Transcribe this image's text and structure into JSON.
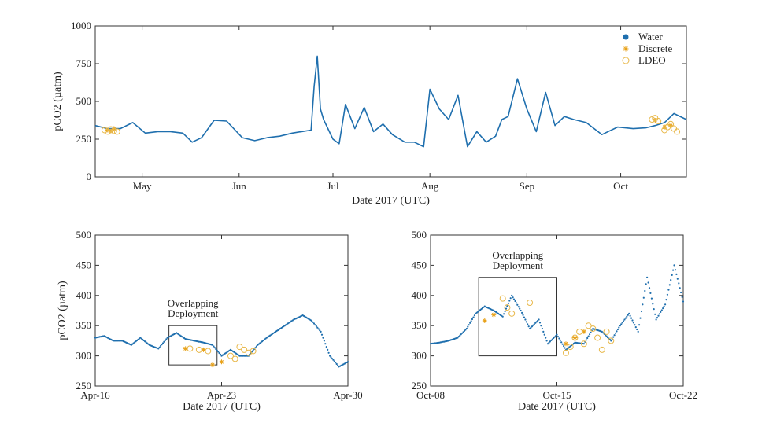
{
  "colors": {
    "water": "#1f6fae",
    "discrete": "#e8a21a",
    "ldeo": "#e8b84a",
    "axis": "#333333"
  },
  "legend": {
    "placement": "top-right",
    "items": [
      "Water",
      "Discrete",
      "LDEO"
    ]
  },
  "chart_data": [
    {
      "type": "line",
      "xlabel": "Date 2017 (UTC)",
      "ylabel": "pCO2 (µatm)",
      "ylim": [
        0,
        1000
      ],
      "yticks": [
        0,
        250,
        500,
        750,
        1000
      ],
      "xlim": [
        "2017-04-16",
        "2017-10-22"
      ],
      "xticks": [
        {
          "date": "2017-05-01",
          "label": "May"
        },
        {
          "date": "2017-06-01",
          "label": "Jun"
        },
        {
          "date": "2017-07-01",
          "label": "Jul"
        },
        {
          "date": "2017-08-01",
          "label": "Aug"
        },
        {
          "date": "2017-09-01",
          "label": "Sep"
        },
        {
          "date": "2017-10-01",
          "label": "Oct"
        }
      ],
      "series": [
        {
          "name": "Water",
          "style": "line",
          "x": [
            "2017-04-16",
            "2017-04-20",
            "2017-04-24",
            "2017-04-28",
            "2017-05-02",
            "2017-05-06",
            "2017-05-10",
            "2017-05-14",
            "2017-05-17",
            "2017-05-20",
            "2017-05-24",
            "2017-05-28",
            "2017-06-02",
            "2017-06-06",
            "2017-06-10",
            "2017-06-14",
            "2017-06-18",
            "2017-06-21",
            "2017-06-24",
            "2017-06-25",
            "2017-06-26",
            "2017-06-27",
            "2017-06-28",
            "2017-07-01",
            "2017-07-03",
            "2017-07-05",
            "2017-07-08",
            "2017-07-11",
            "2017-07-14",
            "2017-07-17",
            "2017-07-20",
            "2017-07-24",
            "2017-07-27",
            "2017-07-30",
            "2017-08-01",
            "2017-08-04",
            "2017-08-07",
            "2017-08-10",
            "2017-08-13",
            "2017-08-16",
            "2017-08-19",
            "2017-08-22",
            "2017-08-24",
            "2017-08-26",
            "2017-08-29",
            "2017-09-01",
            "2017-09-04",
            "2017-09-07",
            "2017-09-10",
            "2017-09-13",
            "2017-09-16",
            "2017-09-20",
            "2017-09-25",
            "2017-09-30",
            "2017-10-05",
            "2017-10-09",
            "2017-10-12",
            "2017-10-15",
            "2017-10-18",
            "2017-10-22"
          ],
          "y": [
            340,
            320,
            320,
            360,
            290,
            300,
            300,
            290,
            230,
            260,
            375,
            370,
            260,
            240,
            260,
            270,
            290,
            300,
            310,
            600,
            800,
            450,
            380,
            250,
            220,
            480,
            320,
            460,
            300,
            350,
            280,
            230,
            230,
            200,
            580,
            450,
            380,
            540,
            200,
            300,
            230,
            270,
            380,
            400,
            650,
            450,
            300,
            560,
            340,
            400,
            380,
            360,
            280,
            330,
            320,
            325,
            340,
            360,
            420,
            380
          ]
        },
        {
          "name": "Discrete",
          "style": "star",
          "x": [
            "2017-04-20",
            "2017-04-21",
            "2017-04-22",
            "2017-10-12",
            "2017-10-15",
            "2017-10-17"
          ],
          "y": [
            310,
            305,
            320,
            375,
            330,
            340
          ]
        },
        {
          "name": "LDEO",
          "style": "circle",
          "x": [
            "2017-04-19",
            "2017-04-20",
            "2017-04-21",
            "2017-04-22",
            "2017-04-23",
            "2017-10-11",
            "2017-10-12",
            "2017-10-13",
            "2017-10-15",
            "2017-10-16",
            "2017-10-17",
            "2017-10-18",
            "2017-10-19"
          ],
          "y": [
            310,
            300,
            315,
            305,
            300,
            380,
            390,
            370,
            310,
            330,
            350,
            320,
            300
          ]
        }
      ]
    },
    {
      "type": "line",
      "xlabel": "Date 2017 (UTC)",
      "ylabel": "pCO2 (µatm)",
      "ylim": [
        250,
        500
      ],
      "yticks": [
        250,
        300,
        350,
        400,
        450,
        500
      ],
      "xlim": [
        "2017-04-16",
        "2017-04-30"
      ],
      "xticks": [
        {
          "date": "2017-04-16",
          "label": "Apr-16"
        },
        {
          "date": "2017-04-23",
          "label": "Apr-23"
        },
        {
          "date": "2017-04-30",
          "label": "Apr-30"
        }
      ],
      "annotation": {
        "lines": [
          "Overlapping",
          "Deployment"
        ],
        "x0": "2017-04-20T02:00",
        "x1": "2017-04-22T18:00",
        "y0": 285,
        "y1": 350
      },
      "series": [
        {
          "name": "Water",
          "style": "dots",
          "x": [
            "2017-04-16T00:00",
            "2017-04-16T12:00",
            "2017-04-17T00:00",
            "2017-04-17T12:00",
            "2017-04-18T00:00",
            "2017-04-18T12:00",
            "2017-04-19T00:00",
            "2017-04-19T12:00",
            "2017-04-20T00:00",
            "2017-04-20T12:00",
            "2017-04-21T00:00",
            "2017-04-21T12:00",
            "2017-04-22T00:00",
            "2017-04-22T12:00",
            "2017-04-23T00:00",
            "2017-04-23T12:00",
            "2017-04-24T00:00",
            "2017-04-24T12:00",
            "2017-04-25T00:00",
            "2017-04-25T12:00",
            "2017-04-26T00:00",
            "2017-04-26T12:00",
            "2017-04-27T00:00",
            "2017-04-27T12:00",
            "2017-04-28T00:00",
            "2017-04-28T12:00",
            "2017-04-29T00:00",
            "2017-04-29T12:00",
            "2017-04-30T00:00"
          ],
          "y": [
            330,
            333,
            325,
            325,
            318,
            330,
            318,
            312,
            330,
            338,
            328,
            325,
            322,
            318,
            300,
            310,
            300,
            300,
            318,
            330,
            340,
            350,
            360,
            367,
            358,
            340,
            300,
            282,
            290
          ]
        },
        {
          "name": "Discrete",
          "style": "star",
          "x": [
            "2017-04-21T00:00",
            "2017-04-22T00:00",
            "2017-04-22T12:00",
            "2017-04-23T00:00"
          ],
          "y": [
            312,
            310,
            285,
            290
          ]
        },
        {
          "name": "LDEO",
          "style": "circle",
          "x": [
            "2017-04-21T06:00",
            "2017-04-21T18:00",
            "2017-04-22T06:00",
            "2017-04-23T12:00",
            "2017-04-23T18:00",
            "2017-04-24T00:00",
            "2017-04-24T06:00",
            "2017-04-24T12:00",
            "2017-04-24T18:00"
          ],
          "y": [
            312,
            310,
            308,
            300,
            295,
            315,
            310,
            305,
            308
          ]
        }
      ]
    },
    {
      "type": "line",
      "xlabel": "Date 2017 (UTC)",
      "ylabel": "",
      "ylim": [
        250,
        500
      ],
      "yticks": [
        250,
        300,
        350,
        400,
        450,
        500
      ],
      "xlim": [
        "2017-10-08",
        "2017-10-22"
      ],
      "xticks": [
        {
          "date": "2017-10-08",
          "label": "Oct-08"
        },
        {
          "date": "2017-10-15",
          "label": "Oct-15"
        },
        {
          "date": "2017-10-22",
          "label": "Oct-22"
        }
      ],
      "annotation": {
        "lines": [
          "Overlapping",
          "Deployment"
        ],
        "x0": "2017-10-10T16:00",
        "x1": "2017-10-15T00:00",
        "y0": 300,
        "y1": 430
      },
      "series": [
        {
          "name": "Water",
          "style": "dots",
          "x": [
            "2017-10-08T00:00",
            "2017-10-08T12:00",
            "2017-10-09T00:00",
            "2017-10-09T12:00",
            "2017-10-10T00:00",
            "2017-10-10T12:00",
            "2017-10-11T00:00",
            "2017-10-11T12:00",
            "2017-10-12T00:00",
            "2017-10-12T12:00",
            "2017-10-13T00:00",
            "2017-10-13T12:00",
            "2017-10-14T00:00",
            "2017-10-14T12:00",
            "2017-10-15T00:00",
            "2017-10-15T12:00",
            "2017-10-16T00:00",
            "2017-10-16T12:00",
            "2017-10-17T00:00",
            "2017-10-17T12:00",
            "2017-10-18T00:00",
            "2017-10-18T12:00",
            "2017-10-19T00:00",
            "2017-10-19T12:00",
            "2017-10-20T00:00",
            "2017-10-20T12:00",
            "2017-10-21T00:00",
            "2017-10-21T12:00",
            "2017-10-22T00:00"
          ],
          "y": [
            320,
            322,
            325,
            330,
            345,
            370,
            382,
            375,
            365,
            400,
            375,
            345,
            360,
            320,
            335,
            310,
            322,
            320,
            345,
            340,
            325,
            350,
            370,
            340,
            430,
            360,
            385,
            450,
            390
          ]
        },
        {
          "name": "Discrete",
          "style": "star",
          "x": [
            "2017-10-11T00:00",
            "2017-10-11T12:00",
            "2017-10-15T12:00",
            "2017-10-16T00:00",
            "2017-10-16T12:00"
          ],
          "y": [
            358,
            368,
            320,
            330,
            340
          ]
        },
        {
          "name": "LDEO",
          "style": "circle",
          "x": [
            "2017-10-12T00:00",
            "2017-10-12T06:00",
            "2017-10-12T12:00",
            "2017-10-13T12:00",
            "2017-10-15T12:00",
            "2017-10-15T18:00",
            "2017-10-16T00:00",
            "2017-10-16T06:00",
            "2017-10-16T12:00",
            "2017-10-16T18:00",
            "2017-10-17T00:00",
            "2017-10-17T06:00",
            "2017-10-17T12:00",
            "2017-10-17T18:00",
            "2017-10-18T00:00"
          ],
          "y": [
            395,
            380,
            370,
            388,
            305,
            315,
            330,
            340,
            320,
            350,
            345,
            330,
            310,
            340,
            325
          ]
        }
      ]
    }
  ]
}
